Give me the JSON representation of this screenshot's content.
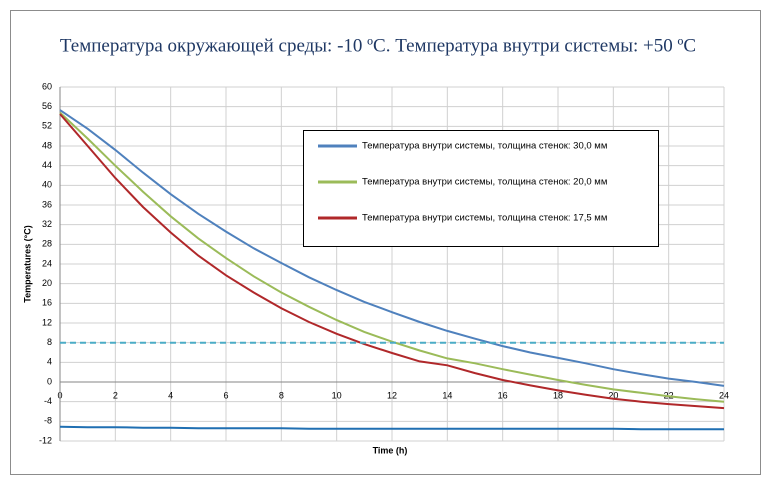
{
  "chart_data": {
    "type": "line",
    "title": "Температура окружающей среды: -10 ºC. Температура внутри системы: +50  ºC",
    "x_label": "Time (h)",
    "y_label": "Temperatures (°C)",
    "x": [
      0,
      1,
      2,
      3,
      4,
      5,
      6,
      7,
      8,
      9,
      10,
      11,
      12,
      13,
      14,
      15,
      16,
      17,
      18,
      19,
      20,
      21,
      22,
      23,
      24
    ],
    "series": [
      {
        "name": "Температура внутри системы, толщина стенок: 30,0 мм",
        "color": "#4f81bd",
        "values": [
          55.3,
          51.5,
          47.2,
          42.6,
          38.2,
          34.2,
          30.6,
          27.2,
          24.2,
          21.3,
          18.7,
          16.3,
          14.2,
          12.2,
          10.4,
          8.8,
          7.3,
          6,
          4.9,
          3.8,
          2.6,
          1.6,
          0.7,
          0,
          -0.8
        ]
      },
      {
        "name": "Температура внутри системы, толщина стенок: 20,0 мм",
        "color": "#9bbb59",
        "values": [
          54.8,
          49.5,
          44,
          38.7,
          33.7,
          29.2,
          25.2,
          21.5,
          18.2,
          15.3,
          12.6,
          10.2,
          8.2,
          6.4,
          4.8,
          3.8,
          2.6,
          1.5,
          0.4,
          -0.6,
          -1.5,
          -2.2,
          -2.9,
          -3.5,
          -4
        ]
      },
      {
        "name": "Температура внутри системы, толщина стенок: 17,5 мм",
        "color": "#b0282a",
        "values": [
          54.5,
          48,
          41.5,
          35.6,
          30.4,
          25.7,
          21.7,
          18.2,
          15,
          12.2,
          9.8,
          7.7,
          5.9,
          4.2,
          3.4,
          1.8,
          0.4,
          -0.7,
          -1.7,
          -2.6,
          -3.4,
          -4,
          -4.5,
          -4.9,
          -5.3
        ]
      },
      {
        "color": "#4bacc6",
        "dash": true,
        "values": [
          8,
          8,
          8,
          8,
          8,
          8,
          8,
          8,
          8,
          8,
          8,
          8,
          8,
          8,
          8,
          8,
          8,
          8,
          8,
          8,
          8,
          8,
          8,
          8,
          8
        ]
      },
      {
        "color": "#1f6fb2",
        "values": [
          -9.1,
          -9.2,
          -9.2,
          -9.3,
          -9.3,
          -9.4,
          -9.4,
          -9.4,
          -9.4,
          -9.5,
          -9.5,
          -9.5,
          -9.5,
          -9.5,
          -9.5,
          -9.5,
          -9.5,
          -9.5,
          -9.5,
          -9.5,
          -9.5,
          -9.6,
          -9.6,
          -9.6,
          -9.6
        ]
      }
    ],
    "xlim": [
      0,
      24
    ],
    "xticks": [
      0,
      2,
      4,
      6,
      8,
      10,
      12,
      14,
      16,
      18,
      20,
      22,
      24
    ],
    "ylim": [
      -12,
      60
    ],
    "yticks": [
      -12,
      -8,
      -4,
      0,
      4,
      8,
      12,
      16,
      20,
      24,
      28,
      32,
      36,
      40,
      44,
      48,
      52,
      56,
      60
    ],
    "grid": true
  }
}
